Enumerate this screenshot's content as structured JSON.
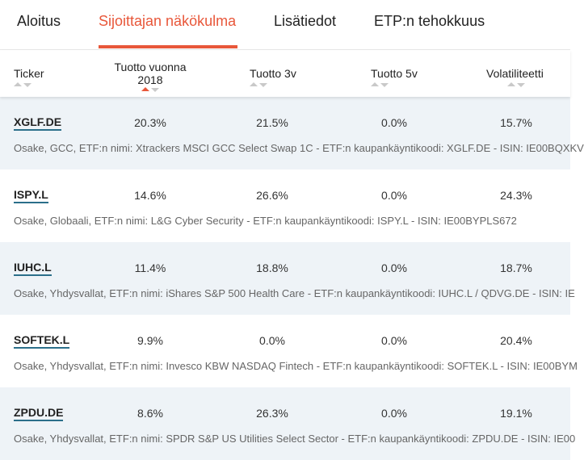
{
  "tabs": [
    {
      "label": "Aloitus"
    },
    {
      "label": "Sijoittajan näkökulma"
    },
    {
      "label": "Lisätiedot"
    },
    {
      "label": "ETP:n tehokkuus"
    }
  ],
  "columns": {
    "ticker": "Ticker",
    "ret_line1": "Tuotto vuonna",
    "ret_line2": "2018",
    "ret3": "Tuotto 3v",
    "ret5": "Tuotto 5v",
    "vol": "Volatiliteetti"
  },
  "colors": {
    "accent": "#e8573a",
    "row_shade": "#eef3f7",
    "ticker_underline": "#2b6f8a"
  },
  "rows": [
    {
      "ticker": "XGLF.DE",
      "r2018": "20.3%",
      "r3": "21.5%",
      "r5": "0.0%",
      "vol": "15.7%",
      "desc": "Osake, GCC, ETF:n nimi: Xtrackers MSCI GCC Select Swap 1C - ETF:n kaupankäyntikoodi: XGLF.DE - ISIN: IE00BQXKV"
    },
    {
      "ticker": "ISPY.L",
      "r2018": "14.6%",
      "r3": "26.6%",
      "r5": "0.0%",
      "vol": "24.3%",
      "desc": "Osake, Globaali, ETF:n nimi: L&G Cyber Security - ETF:n kaupankäyntikoodi: ISPY.L - ISIN: IE00BYPLS672"
    },
    {
      "ticker": "IUHC.L",
      "r2018": "11.4%",
      "r3": "18.8%",
      "r5": "0.0%",
      "vol": "18.7%",
      "desc": "Osake, Yhdysvallat, ETF:n nimi: iShares S&P 500 Health Care - ETF:n kaupankäyntikoodi: IUHC.L / QDVG.DE - ISIN: IE"
    },
    {
      "ticker": "SOFTEK.L",
      "r2018": "9.9%",
      "r3": "0.0%",
      "r5": "0.0%",
      "vol": "20.4%",
      "desc": "Osake, Yhdysvallat, ETF:n nimi: Invesco KBW NASDAQ Fintech - ETF:n kaupankäyntikoodi: SOFTEK.L - ISIN: IE00BYM"
    },
    {
      "ticker": "ZPDU.DE",
      "r2018": "8.6%",
      "r3": "26.3%",
      "r5": "0.0%",
      "vol": "19.1%",
      "desc": "Osake, Yhdysvallat, ETF:n nimi: SPDR S&P US Utilities Select Sector - ETF:n kaupankäyntikoodi: ZPDU.DE - ISIN: IE00"
    }
  ]
}
